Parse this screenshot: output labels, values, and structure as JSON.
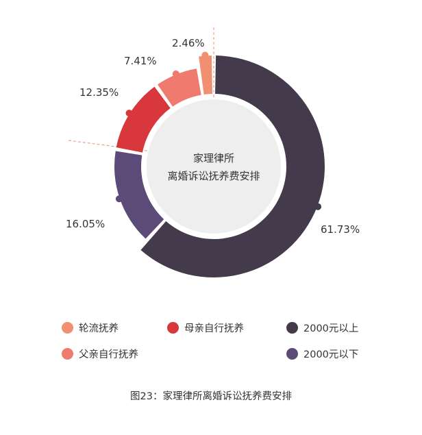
{
  "chart_data": {
    "type": "pie",
    "center_label": [
      "家理律所",
      "离婚诉讼抚养费安排"
    ],
    "slices": [
      {
        "label": "2000元以上",
        "value": 61.73,
        "display": "61.73%",
        "color": "#433a4c"
      },
      {
        "label": "2000元以下",
        "value": 16.05,
        "display": "16.05%",
        "color": "#5c4a78"
      },
      {
        "label": "母亲自行抚养",
        "value": 12.35,
        "display": "12.35%",
        "color": "#d8383c"
      },
      {
        "label": "父亲自行抚养",
        "value": 7.41,
        "display": "7.41%",
        "color": "#ee7b6e"
      },
      {
        "label": "轮流抚养",
        "value": 2.46,
        "display": "2.46%",
        "color": "#f09070"
      }
    ],
    "legend": [
      {
        "label": "轮流抚养",
        "color": "#f09070"
      },
      {
        "label": "母亲自行抚养",
        "color": "#d8383c"
      },
      {
        "label": "2000元以上",
        "color": "#433a4c"
      },
      {
        "label": "父亲自行抚养",
        "color": "#ee7b6e"
      },
      {
        "label": "2000元以下",
        "color": "#5c4a78"
      }
    ],
    "caption": "图23：家理律所离婚诉讼抚养费安排"
  }
}
